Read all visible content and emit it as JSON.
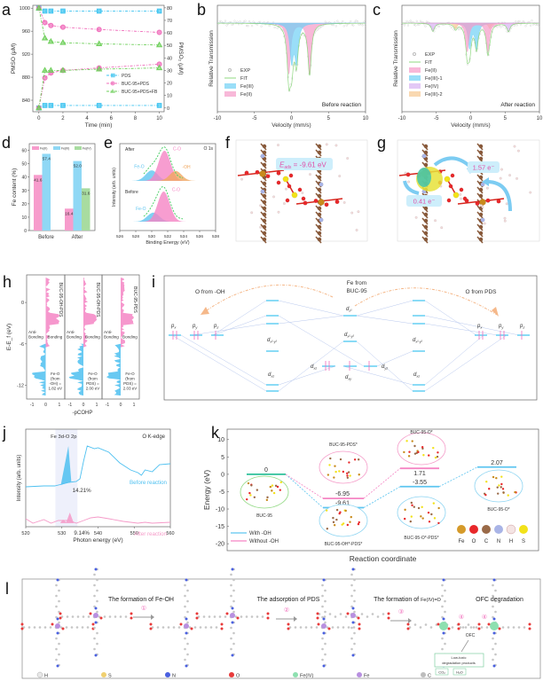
{
  "panels": {
    "a": {
      "label": "a"
    },
    "b": {
      "label": "b"
    },
    "c": {
      "label": "c"
    },
    "d": {
      "label": "d"
    },
    "e": {
      "label": "e"
    },
    "f": {
      "label": "f"
    },
    "g": {
      "label": "g"
    },
    "h": {
      "label": "h"
    },
    "i": {
      "label": "i"
    },
    "j": {
      "label": "j"
    },
    "k": {
      "label": "k"
    },
    "l": {
      "label": "l"
    }
  },
  "chart_data": [
    {
      "id": "a",
      "type": "line",
      "xlabel": "Time (min)",
      "ylabel": "PMSO (μM)",
      "y2label": "PMSO₂ (μM)",
      "xlim": [
        0,
        10
      ],
      "ylim": [
        820,
        1005
      ],
      "y2lim": [
        -3,
        82
      ],
      "xticks": [
        0,
        2,
        4,
        6,
        8,
        10
      ],
      "yticks": [
        840,
        880,
        920,
        960,
        1000
      ],
      "y2ticks": [
        0,
        10,
        20,
        30,
        40,
        50,
        60,
        70,
        80
      ],
      "x": [
        0,
        0.5,
        1,
        2,
        5,
        10
      ],
      "series": [
        {
          "name": "PDS",
          "axis": "left",
          "color": "#3cc3f0",
          "marker": "square",
          "values": [
            1000,
            995,
            995,
            995,
            995,
            995
          ]
        },
        {
          "name": "PDS",
          "axis": "right",
          "color": "#3cc3f0",
          "marker": "square",
          "values": [
            0,
            2,
            2,
            2,
            2,
            2
          ],
          "legend": false
        },
        {
          "name": "BUC-95+PDS",
          "axis": "left",
          "color": "#f06dbb",
          "marker": "circle",
          "values": [
            1000,
            975,
            970,
            967,
            963,
            958
          ]
        },
        {
          "name": "BUC-95+PDS",
          "axis": "right",
          "color": "#f06dbb",
          "marker": "circle",
          "values": [
            0,
            24,
            28,
            30,
            32,
            35
          ],
          "legend": false
        },
        {
          "name": "BUC-95+PDS+FB",
          "axis": "left",
          "color": "#6ecf5a",
          "marker": "triangle",
          "values": [
            1000,
            948,
            942,
            940,
            938,
            936
          ]
        },
        {
          "name": "BUC-95+PDS+FB",
          "axis": "right",
          "color": "#6ecf5a",
          "marker": "triangle",
          "values": [
            0,
            30,
            30,
            30,
            31,
            32
          ],
          "legend": false
        }
      ],
      "legend": [
        "PDS",
        "BUC-95+PDS",
        "BUC-95+PDS+FB"
      ],
      "legend_position": "bottom-right"
    },
    {
      "id": "b",
      "type": "area",
      "xlabel": "Velocity (mm/s)",
      "ylabel": "Relative Transmission",
      "xlim": [
        -10,
        10
      ],
      "xticks": [
        -10,
        -5,
        0,
        5,
        10
      ],
      "annotation": "Before reaction",
      "legend": [
        "EXP",
        "FIT",
        "Fe(III)",
        "Fe(II)"
      ],
      "components": [
        {
          "name": "Fe(III)",
          "color": "#6fd0f5",
          "center": 0.35,
          "split": 0.65,
          "depth": 0.45
        },
        {
          "name": "Fe(II)",
          "color": "#f59ac8",
          "center": 1.05,
          "split": 2.8,
          "depth": 0.62
        }
      ]
    },
    {
      "id": "c",
      "type": "area",
      "xlabel": "Velocity (mm/s)",
      "ylabel": "Relative Transmission",
      "xlim": [
        -10,
        10
      ],
      "xticks": [
        -10,
        -5,
        0,
        5,
        10
      ],
      "annotation": "After reaction",
      "legend": [
        "EXP",
        "FIT",
        "Fe(II)",
        "Fe(III)-1",
        "Fe(IV)",
        "Fe(III)-2"
      ],
      "components": [
        {
          "name": "Fe(II)",
          "color": "#f59ac8",
          "center": 1.0,
          "split": 3.0,
          "depth": 0.35
        },
        {
          "name": "Fe(III)-1",
          "color": "#6fd0f5",
          "center": 0.35,
          "split": 1.0,
          "depth": 0.3
        },
        {
          "name": "Fe(IV)",
          "color": "#d7b0f2",
          "center": 0.0,
          "split": 11,
          "depth": 0.1
        },
        {
          "name": "Fe(III)-2",
          "color": "#f7c890",
          "center": 0.3,
          "split": 5,
          "depth": 0.07
        }
      ]
    },
    {
      "id": "d",
      "type": "bar",
      "ylabel": "Fe content (%)",
      "ylim": [
        0,
        65
      ],
      "yticks": [
        0,
        10,
        20,
        30,
        40,
        50,
        60
      ],
      "categories": [
        "Before",
        "After"
      ],
      "series": [
        {
          "name": "Fe(II)",
          "color": "#f79ccc",
          "values": [
            41.6,
            16.4
          ]
        },
        {
          "name": "Fe(III)",
          "color": "#8fd8f5",
          "values": [
            57.4,
            52.0
          ]
        },
        {
          "name": "Fe(IV)",
          "color": "#a8dca0",
          "values": [
            null,
            31.6
          ]
        }
      ],
      "data_labels": [
        "41.6",
        "57.4",
        "16.4",
        "52.0",
        "31.6"
      ],
      "legend_position": "top"
    },
    {
      "id": "e",
      "type": "area",
      "title": "O 1s",
      "xlabel": "Binding Energy (eV)",
      "ylabel": "Intensity (arb. units)",
      "xlim": [
        526,
        538
      ],
      "xticks": [
        526,
        528,
        530,
        532,
        534,
        536,
        538
      ],
      "traces": [
        {
          "name": "After",
          "peaks": [
            {
              "label": "Fe-O",
              "center": 530.0,
              "color": "#5ec5f0",
              "height": 0.35
            },
            {
              "label": "C-O",
              "center": 531.6,
              "color": "#f585c4",
              "height": 1.0
            },
            {
              "label": "-OH",
              "center": 533.0,
              "color": "#f0a860",
              "height": 0.33
            }
          ]
        },
        {
          "name": "Before",
          "peaks": [
            {
              "label": "Fe-O",
              "center": 530.2,
              "color": "#5ec5f0",
              "height": 0.3
            },
            {
              "label": "C-O",
              "center": 531.5,
              "color": "#f585c4",
              "height": 1.0
            }
          ]
        }
      ]
    },
    {
      "id": "h",
      "type": "area",
      "xlabel": "-pCOHP",
      "ylabel": "E-E_f (eV)",
      "ylim": [
        -14,
        4
      ],
      "yticks": [
        0,
        -6,
        -12
      ],
      "xticks": [
        -1,
        0,
        1
      ],
      "subplots": [
        {
          "name": "BUC-95-OH-PDS",
          "annotation": "Fe-O (from -OH) = 1.82 eV",
          "annotation_lines": [
            "Fe-O",
            "(from",
            "-OH) =",
            "1.82 eV"
          ]
        },
        {
          "name": "BUC-95-OH-PDS",
          "annotation": "Fe-O (from PDS) = 2.00 eV",
          "annotation_lines": [
            "Fe-O",
            "(from",
            "PDS) =",
            "2.00 eV"
          ]
        },
        {
          "name": "BUC-95-PDS",
          "annotation": "Fe-O (from PDS) = 2.03 eV",
          "annotation_lines": [
            "Fe-O",
            "(from",
            "PDS) =",
            "2.03 eV"
          ]
        }
      ],
      "labels": {
        "anti": "Anti-",
        "bonding_a": "Bonding",
        "bonding": "Bonding"
      },
      "colors": {
        "bonding": "#f585c4",
        "antibonding": "#4ec0f0"
      }
    },
    {
      "id": "j",
      "type": "line",
      "title": "O K-edge",
      "region_label": "Fe 3d-O 2p",
      "xlabel": "Photon energy (eV)",
      "ylabel": "Intensity (arb. units)",
      "xlim": [
        520,
        560
      ],
      "xticks": [
        520,
        530,
        540,
        550,
        560
      ],
      "series": [
        {
          "name": "Before reaction",
          "color": "#4ec0f0",
          "percent": "14.21%"
        },
        {
          "name": "After reaction",
          "color": "#f59ac8",
          "percent": "9.14%"
        }
      ]
    },
    {
      "id": "k",
      "type": "line",
      "xlabel": "Reaction coordinate",
      "ylabel": "Energy (eV)",
      "ylim": [
        -22,
        13
      ],
      "yticks": [
        10,
        5,
        0,
        -5,
        -10,
        -15,
        -20
      ],
      "states": [
        "BUC-95",
        "BUC-95-OH*-PDS* / BUC-95-PDS*",
        "BUC-95-O*-PDS* / BUC-95-O*",
        "BUC-95-O*"
      ],
      "series": [
        {
          "name": "With -OH",
          "color": "#5ec5f0",
          "values": [
            0,
            -9.61,
            -3.55,
            2.07
          ]
        },
        {
          "name": "Without -OH",
          "color": "#f585c4",
          "values": [
            0,
            -6.95,
            1.71
          ]
        }
      ],
      "value_labels": [
        "0",
        "-9.61",
        "-6.95",
        "-3.55",
        "1.71",
        "2.07"
      ],
      "structure_labels": [
        "BUC-95",
        "BUC-95-PDS*",
        "BUC-95-OH*-PDS*",
        "BUC-95-O*",
        "BUC-95-O*-PDS*",
        "BUC-95-O*"
      ],
      "atom_legend": [
        {
          "symbol": "Fe",
          "color": "#d59a2a"
        },
        {
          "symbol": "O",
          "color": "#e8282a"
        },
        {
          "symbol": "C",
          "color": "#9a6a48"
        },
        {
          "symbol": "N",
          "color": "#a9b4e6"
        },
        {
          "symbol": "H",
          "color": "#f4e4e4"
        },
        {
          "symbol": "S",
          "color": "#f2e21a"
        }
      ]
    }
  ],
  "panel_f": {
    "eads_prefix": "E",
    "eads_sub": "ads",
    "eads_value": " = -9.61 eV"
  },
  "panel_g": {
    "charge1": "1.57 e⁻",
    "charge2": "0.41 e⁻"
  },
  "panel_i": {
    "left_title": "O from -OH",
    "center_title_1": "Fe from",
    "center_title_2": "BUC-95",
    "right_title": "O from PDS",
    "p_orbitals": [
      "p",
      "p",
      "p"
    ],
    "p_subs": [
      "x",
      "y",
      "z"
    ],
    "d_orbitals": {
      "dz2": "z²",
      "dx2y2": "x²-y²",
      "dxz": "xz",
      "dyz": "yz",
      "dxy": "xy"
    }
  },
  "panel_l": {
    "step1": "The formation of Fe-OH",
    "step2": "The adsorption of PDS",
    "step3_prefix": "The formation of ",
    "step3_suffix": "Fe(IV)=O",
    "step4": "OFC degradation",
    "circled": [
      "①",
      "②",
      "③",
      "④",
      "④"
    ],
    "ofc": "OFC",
    "products_title_1": "Low-toxic",
    "products_title_2": "degradation products",
    "products": [
      "CO₂",
      "H₂O"
    ],
    "fe4_label": "Fe(IV)",
    "legend": [
      {
        "label": "H",
        "color": "#e8e8e8"
      },
      {
        "label": "S",
        "color": "#f0d070"
      },
      {
        "label": "N",
        "color": "#4a60e0"
      },
      {
        "label": "O",
        "color": "#e83a3a"
      },
      {
        "label": "Fe(IV)",
        "color": "#8ee0b0"
      },
      {
        "label": "Fe",
        "color": "#b890e0"
      },
      {
        "label": "C",
        "color": "#bdbdbd"
      }
    ]
  }
}
